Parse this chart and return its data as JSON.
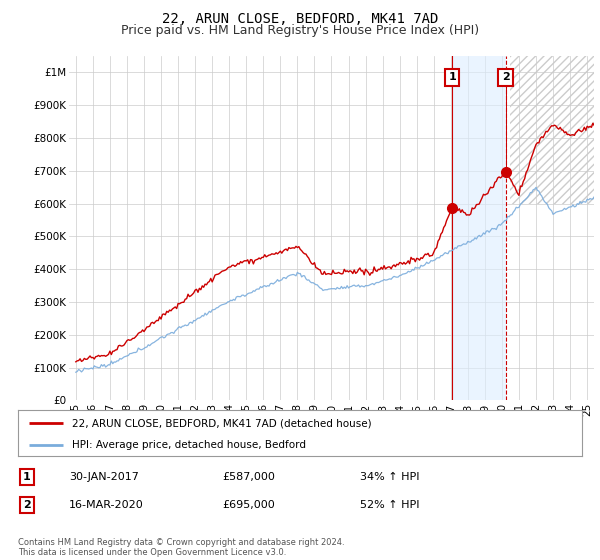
{
  "title": "22, ARUN CLOSE, BEDFORD, MK41 7AD",
  "subtitle": "Price paid vs. HM Land Registry's House Price Index (HPI)",
  "ylim": [
    0,
    1050000
  ],
  "yticks": [
    0,
    100000,
    200000,
    300000,
    400000,
    500000,
    600000,
    700000,
    800000,
    900000,
    1000000
  ],
  "ytick_labels": [
    "£0",
    "£100K",
    "£200K",
    "£300K",
    "£400K",
    "£500K",
    "£600K",
    "£700K",
    "£800K",
    "£900K",
    "£1M"
  ],
  "xlim_min": 1994.6,
  "xlim_max": 2025.4,
  "sale1_x": 2017.08,
  "sale1_price": 587000,
  "sale2_x": 2020.21,
  "sale2_price": 695000,
  "legend_line1": "22, ARUN CLOSE, BEDFORD, MK41 7AD (detached house)",
  "legend_line2": "HPI: Average price, detached house, Bedford",
  "ann1_date": "30-JAN-2017",
  "ann1_price": "£587,000",
  "ann1_pct": "34% ↑ HPI",
  "ann2_date": "16-MAR-2020",
  "ann2_price": "£695,000",
  "ann2_pct": "52% ↑ HPI",
  "footer": "Contains HM Land Registry data © Crown copyright and database right 2024.\nThis data is licensed under the Open Government Licence v3.0.",
  "line1_color": "#cc0000",
  "line2_color": "#7aacdc",
  "shade_color": "#ddeeff",
  "grid_color": "#cccccc",
  "title_fontsize": 10,
  "subtitle_fontsize": 9,
  "tick_fontsize": 7.5,
  "legend_fontsize": 7.5,
  "ann_fontsize": 8,
  "footer_fontsize": 6
}
